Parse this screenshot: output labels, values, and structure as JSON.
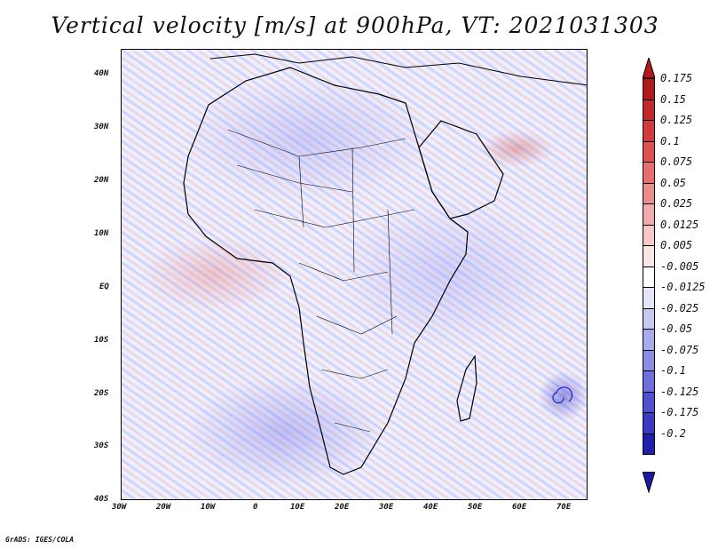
{
  "title": "Vertical velocity [m/s] at 900hPa, VT: 2021031303",
  "credit": "GrADS: IGES/COLA",
  "map": {
    "lat_labels": [
      "40N",
      "30N",
      "20N",
      "10N",
      "EQ",
      "10S",
      "20S",
      "30S",
      "40S"
    ],
    "lon_labels": [
      "30W",
      "20W",
      "10W",
      "0",
      "10E",
      "20E",
      "30E",
      "40E",
      "50E",
      "60E",
      "70E"
    ],
    "lon_range": [
      -30,
      75
    ],
    "lat_range": [
      -40,
      45
    ]
  },
  "colorbar": {
    "levels": [
      "0.175",
      "0.15",
      "0.125",
      "0.1",
      "0.075",
      "0.05",
      "0.025",
      "0.0125",
      "0.005",
      "-0.005",
      "-0.0125",
      "-0.025",
      "-0.05",
      "-0.075",
      "-0.1",
      "-0.125",
      "-0.175",
      "-0.2"
    ],
    "colors": [
      "#b01a1a",
      "#c42828",
      "#d43a3a",
      "#e05252",
      "#e86e6e",
      "#ee8c8c",
      "#f3aaaa",
      "#f7c8c8",
      "#fbe4e4",
      "#ffffff",
      "#e4e4fb",
      "#c8c8f5",
      "#aaaaee",
      "#8c8ce6",
      "#6e6ede",
      "#5050d2",
      "#3a3ac2",
      "#2020b0"
    ],
    "top_arrow_color": "#b01a1a",
    "bottom_arrow_color": "#1a1aa0"
  }
}
